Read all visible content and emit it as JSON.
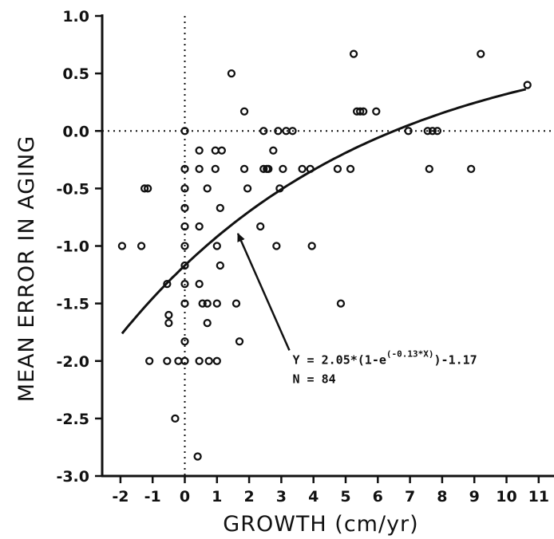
{
  "chart_data": {
    "type": "scatter",
    "title": "",
    "xlabel": "GROWTH (cm/yr)",
    "ylabel": "MEAN ERROR IN AGING",
    "xlim": [
      -2.5,
      11.2
    ],
    "ylim": [
      -3.0,
      1.0
    ],
    "x_ticks": [
      -2,
      -1,
      0,
      1,
      2,
      3,
      4,
      5,
      6,
      7,
      8,
      9,
      10,
      11
    ],
    "x_tick_labels": [
      "-2",
      "-1",
      "0",
      "1",
      "2",
      "3",
      "4",
      "5",
      "6",
      "7",
      "8",
      "9",
      "10",
      "11"
    ],
    "y_ticks": [
      1.0,
      0.5,
      0.0,
      -0.5,
      -1.0,
      -1.5,
      -2.0,
      -2.5,
      -3.0
    ],
    "y_tick_labels": [
      "1.0",
      "0.5",
      "0.0",
      "-0.5",
      "-1.0",
      "-1.5",
      "-2.0",
      "-2.5",
      "-3.0"
    ],
    "grid": false,
    "reference_lines": {
      "x": 0,
      "y": 0,
      "style": "dotted"
    },
    "points": [
      {
        "x": -1.95,
        "y": -1.0
      },
      {
        "x": -1.35,
        "y": -1.0
      },
      {
        "x": -1.25,
        "y": -0.5
      },
      {
        "x": -1.15,
        "y": -0.5
      },
      {
        "x": -1.1,
        "y": -2.0
      },
      {
        "x": -0.55,
        "y": -1.33
      },
      {
        "x": -0.5,
        "y": -1.6
      },
      {
        "x": -0.5,
        "y": -1.67
      },
      {
        "x": -0.55,
        "y": -2.0
      },
      {
        "x": -0.3,
        "y": -2.5
      },
      {
        "x": 0.0,
        "y": 0.0
      },
      {
        "x": 0.0,
        "y": -0.33
      },
      {
        "x": 0.0,
        "y": -0.5
      },
      {
        "x": 0.0,
        "y": -0.67
      },
      {
        "x": 0.0,
        "y": -0.83
      },
      {
        "x": 0.0,
        "y": -1.0
      },
      {
        "x": 0.0,
        "y": -1.17
      },
      {
        "x": 0.0,
        "y": -1.33
      },
      {
        "x": 0.0,
        "y": -1.5
      },
      {
        "x": 0.0,
        "y": -1.83
      },
      {
        "x": 0.0,
        "y": -2.0
      },
      {
        "x": -0.2,
        "y": -2.0
      },
      {
        "x": 0.45,
        "y": -0.17
      },
      {
        "x": 0.45,
        "y": -0.33
      },
      {
        "x": 0.45,
        "y": -0.83
      },
      {
        "x": 0.45,
        "y": -1.33
      },
      {
        "x": 0.45,
        "y": -2.0
      },
      {
        "x": 0.4,
        "y": -2.83
      },
      {
        "x": 0.55,
        "y": -1.5
      },
      {
        "x": 0.7,
        "y": -0.5
      },
      {
        "x": 0.7,
        "y": -1.5
      },
      {
        "x": 0.7,
        "y": -1.67
      },
      {
        "x": 0.75,
        "y": -2.0
      },
      {
        "x": 0.95,
        "y": -0.17
      },
      {
        "x": 0.95,
        "y": -0.33
      },
      {
        "x": 1.0,
        "y": -1.0
      },
      {
        "x": 1.0,
        "y": -1.5
      },
      {
        "x": 1.0,
        "y": -2.0
      },
      {
        "x": 1.1,
        "y": -0.67
      },
      {
        "x": 1.1,
        "y": -1.17
      },
      {
        "x": 1.15,
        "y": -0.17
      },
      {
        "x": 1.45,
        "y": 0.5
      },
      {
        "x": 1.6,
        "y": -1.5
      },
      {
        "x": 1.7,
        "y": -1.83
      },
      {
        "x": 1.85,
        "y": 0.17
      },
      {
        "x": 1.85,
        "y": -0.33
      },
      {
        "x": 1.95,
        "y": -0.5
      },
      {
        "x": 2.35,
        "y": -0.83
      },
      {
        "x": 2.45,
        "y": 0.0
      },
      {
        "x": 2.45,
        "y": -0.33
      },
      {
        "x": 2.55,
        "y": -0.33
      },
      {
        "x": 2.6,
        "y": -0.33
      },
      {
        "x": 2.75,
        "y": -0.17
      },
      {
        "x": 2.85,
        "y": -1.0
      },
      {
        "x": 2.9,
        "y": 0.0
      },
      {
        "x": 2.95,
        "y": -0.5
      },
      {
        "x": 3.05,
        "y": -0.33
      },
      {
        "x": 3.15,
        "y": 0.0
      },
      {
        "x": 3.35,
        "y": 0.0
      },
      {
        "x": 3.65,
        "y": -0.33
      },
      {
        "x": 3.9,
        "y": -0.33
      },
      {
        "x": 3.95,
        "y": -1.0
      },
      {
        "x": 4.75,
        "y": -0.33
      },
      {
        "x": 4.85,
        "y": -1.5
      },
      {
        "x": 5.15,
        "y": -0.33
      },
      {
        "x": 5.25,
        "y": 0.67
      },
      {
        "x": 5.35,
        "y": 0.17
      },
      {
        "x": 5.45,
        "y": 0.17
      },
      {
        "x": 5.55,
        "y": 0.17
      },
      {
        "x": 5.95,
        "y": 0.17
      },
      {
        "x": 6.95,
        "y": 0.0
      },
      {
        "x": 7.55,
        "y": 0.0
      },
      {
        "x": 7.6,
        "y": -0.33
      },
      {
        "x": 7.7,
        "y": 0.0
      },
      {
        "x": 7.85,
        "y": 0.0
      },
      {
        "x": 8.9,
        "y": -0.33
      },
      {
        "x": 9.2,
        "y": 0.67
      },
      {
        "x": 10.65,
        "y": 0.4
      }
    ],
    "fit_curve": {
      "a": 2.05,
      "b": 0.13,
      "c": -1.17,
      "x_range": [
        -1.95,
        10.6
      ]
    },
    "annotation": {
      "equation_prefix": "Y = 2.05*(1-e",
      "equation_exponent": "(-0.13*X)",
      "equation_suffix": ")-1.17",
      "n_label": "N = 84",
      "arrow_target": {
        "x": 1.65,
        "y": -0.85
      },
      "text_anchor": {
        "x": 3.35,
        "y": -1.97
      }
    }
  }
}
